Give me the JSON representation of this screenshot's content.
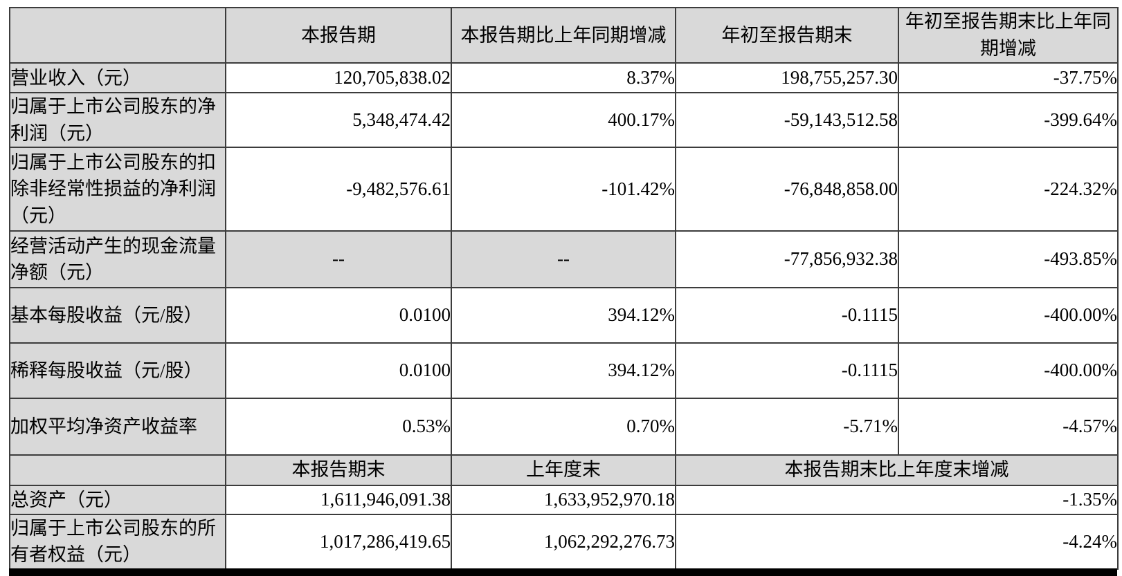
{
  "colors": {
    "cell_shade": "#d9d9d9",
    "border": "#3c3c3c",
    "text": "#000000",
    "bottom_bar": "#000000"
  },
  "section1": {
    "headers": {
      "corner": "",
      "current_period": "本报告期",
      "current_vs_prior_year": "本报告期比上年同期增减",
      "year_to_date": "年初至报告期末",
      "ytd_vs_prior_year": "年初至报告期末比上年同期增减"
    },
    "rows": [
      {
        "label": "营业收入（元）",
        "current": "120,705,838.02",
        "yoy_change": "8.37%",
        "ytd": "198,755,257.30",
        "ytd_change": "-37.75%"
      },
      {
        "label": "归属于上市公司股东的净利润（元）",
        "current": "5,348,474.42",
        "yoy_change": "400.17%",
        "ytd": "-59,143,512.58",
        "ytd_change": "-399.64%"
      },
      {
        "label": "归属于上市公司股东的扣除非经常性损益的净利润（元）",
        "current": "-9,482,576.61",
        "yoy_change": "-101.42%",
        "ytd": "-76,848,858.00",
        "ytd_change": "-224.32%"
      },
      {
        "label": "经营活动产生的现金流量净额（元）",
        "current": "--",
        "yoy_change": "--",
        "ytd": "-77,856,932.38",
        "ytd_change": "-493.85%"
      },
      {
        "label": "基本每股收益（元/股）",
        "current": "0.0100",
        "yoy_change": "394.12%",
        "ytd": "-0.1115",
        "ytd_change": "-400.00%"
      },
      {
        "label": "稀释每股收益（元/股）",
        "current": "0.0100",
        "yoy_change": "394.12%",
        "ytd": "-0.1115",
        "ytd_change": "-400.00%"
      },
      {
        "label": "加权平均净资产收益率",
        "current": "0.53%",
        "yoy_change": "0.70%",
        "ytd": "-5.71%",
        "ytd_change": "-4.57%"
      }
    ]
  },
  "section2": {
    "headers": {
      "corner": "",
      "period_end": "本报告期末",
      "prev_year_end": "上年度末",
      "period_end_vs_prev_year_end": "本报告期末比上年度末增减"
    },
    "rows": [
      {
        "label": "总资产（元）",
        "period_end": "1,611,946,091.38",
        "prev_year_end": "1,633,952,970.18",
        "change": "-1.35%"
      },
      {
        "label": "归属于上市公司股东的所有者权益（元）",
        "period_end": "1,017,286,419.65",
        "prev_year_end": "1,062,292,276.73",
        "change": "-4.24%"
      }
    ]
  }
}
